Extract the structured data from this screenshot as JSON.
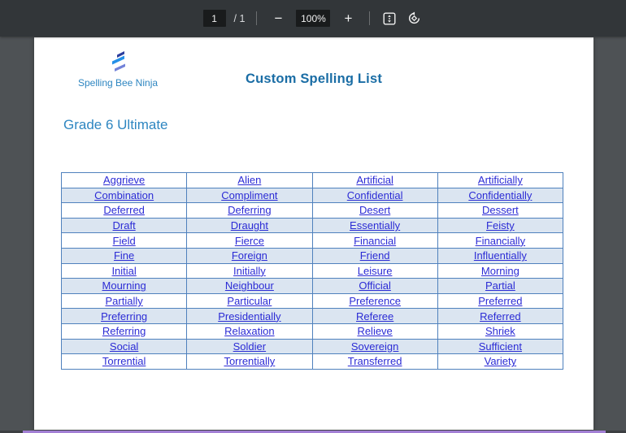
{
  "toolbar": {
    "page_number": "1",
    "page_count": "/ 1",
    "zoom_out": "−",
    "zoom_level": "100%",
    "zoom_in": "+"
  },
  "document": {
    "logo_text": "Spelling Bee Ninja",
    "title": "Custom Spelling List",
    "heading": "Grade 6 Ultimate",
    "word_table": {
      "rows": [
        [
          "Aggrieve",
          "Alien",
          "Artificial",
          "Artificially"
        ],
        [
          "Combination",
          "Compliment",
          "Confidential",
          "Confidentially"
        ],
        [
          "Deferred",
          "Deferring",
          "Desert",
          "Dessert"
        ],
        [
          "Draft",
          "Draught",
          "Essentially",
          "Feisty"
        ],
        [
          "Field",
          "Fierce",
          "Financial",
          "Financially"
        ],
        [
          "Fine",
          "Foreign",
          "Friend",
          "Influentially"
        ],
        [
          "Initial",
          "Initially",
          "Leisure",
          "Morning"
        ],
        [
          "Mourning",
          "Neighbour",
          "Official",
          "Partial"
        ],
        [
          "Partially",
          "Particular",
          "Preference",
          "Preferred"
        ],
        [
          "Preferring",
          "Presidentially",
          "Referee",
          "Referred"
        ],
        [
          "Referring",
          "Relaxation",
          "Relieve",
          "Shriek"
        ],
        [
          "Social",
          "Soldier",
          "Sovereign",
          "Sufficient"
        ],
        [
          "Torrential",
          "Torrentially",
          "Transferred",
          "Variety"
        ]
      ]
    }
  },
  "icons": {
    "fit_to_page": "fit-to-page-icon",
    "rotate": "rotate-counterclockwise-icon"
  },
  "colors": {
    "toolbar_bg": "#323639",
    "viewer_bg": "#4e5255",
    "control_box_bg": "#191b1c",
    "toolbar_text": "#f1f1f1",
    "title_blue": "#1a6da5",
    "heading_blue": "#2e86c1",
    "table_border": "#4f81bd",
    "row_alt_bg": "#dbe5f1",
    "link_blue": "#2b2bd5",
    "bottom_edge_purple": "#a27fd4"
  }
}
